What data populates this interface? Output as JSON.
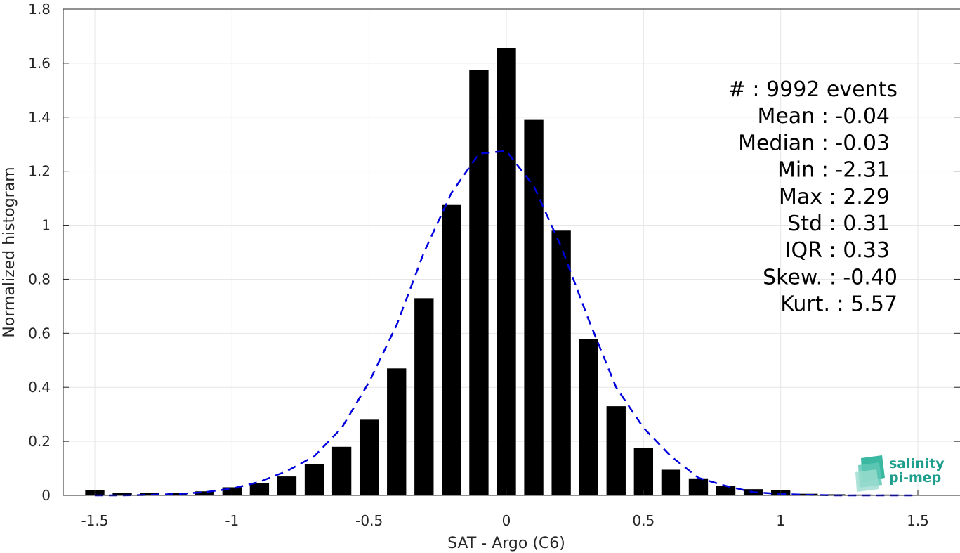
{
  "chart_data": {
    "type": "bar",
    "xlabel": "SAT - Argo (C6)",
    "ylabel": "Normalized histogram",
    "xlim": [
      -1.55,
      1.55
    ],
    "ylim": [
      0,
      1.8
    ],
    "xticks": [
      -1.5,
      -1,
      -0.5,
      0,
      0.5,
      1,
      1.5
    ],
    "xtick_labels": [
      "-1.5",
      "-1",
      "-0.5",
      "0",
      "0.5",
      "1",
      "1.5"
    ],
    "yticks": [
      0,
      0.2,
      0.4,
      0.6,
      0.8,
      1,
      1.2,
      1.4,
      1.6,
      1.8
    ],
    "ytick_labels": [
      "0",
      "0.2",
      "0.4",
      "0.6",
      "0.8",
      "1",
      "1.2",
      "1.4",
      "1.6",
      "1.8"
    ],
    "grid": true,
    "bar_color": "#000000",
    "bars": {
      "x": [
        -1.5,
        -1.4,
        -1.3,
        -1.2,
        -1.1,
        -1.0,
        -0.9,
        -0.8,
        -0.7,
        -0.6,
        -0.5,
        -0.4,
        -0.3,
        -0.2,
        -0.1,
        0.0,
        0.1,
        0.2,
        0.3,
        0.4,
        0.5,
        0.6,
        0.7,
        0.8,
        0.9,
        1.0,
        1.1,
        1.2,
        1.3,
        1.4,
        1.5
      ],
      "values": [
        0.02,
        0.01,
        0.01,
        0.01,
        0.015,
        0.03,
        0.045,
        0.07,
        0.115,
        0.18,
        0.28,
        0.47,
        0.73,
        1.075,
        1.575,
        1.655,
        1.39,
        0.98,
        0.58,
        0.33,
        0.175,
        0.095,
        0.063,
        0.035,
        0.023,
        0.02,
        0.006,
        0.004,
        0.003,
        0.003,
        0.002
      ]
    },
    "fit": {
      "style": "dashed",
      "color": "#0000dd",
      "x": [
        -1.5,
        -1.4,
        -1.3,
        -1.2,
        -1.1,
        -1.0,
        -0.9,
        -0.8,
        -0.7,
        -0.6,
        -0.5,
        -0.4,
        -0.3,
        -0.2,
        -0.1,
        0.0,
        0.1,
        0.2,
        0.3,
        0.4,
        0.5,
        0.6,
        0.7,
        0.8,
        0.9,
        1.0,
        1.1,
        1.2,
        1.3,
        1.4,
        1.5
      ],
      "y": [
        0.0,
        0.0,
        0.002,
        0.005,
        0.012,
        0.025,
        0.05,
        0.09,
        0.145,
        0.25,
        0.42,
        0.63,
        0.9,
        1.12,
        1.265,
        1.275,
        1.145,
        0.92,
        0.65,
        0.4,
        0.25,
        0.145,
        0.065,
        0.035,
        0.012,
        0.005,
        0.002,
        0.0,
        0.0,
        0.0,
        0.0
      ]
    },
    "annotations": [
      "#  : 9992 events",
      "Mean : -0.04",
      "Median : -0.03",
      "Min : -2.31",
      "Max : 2.29",
      "Std : 0.31",
      "IQR : 0.33",
      "Skew. : -0.40",
      "Kurt. : 5.57"
    ]
  },
  "logo": {
    "line1": "salinity",
    "line2": "pi-mep",
    "color": "#1e9e8c"
  }
}
